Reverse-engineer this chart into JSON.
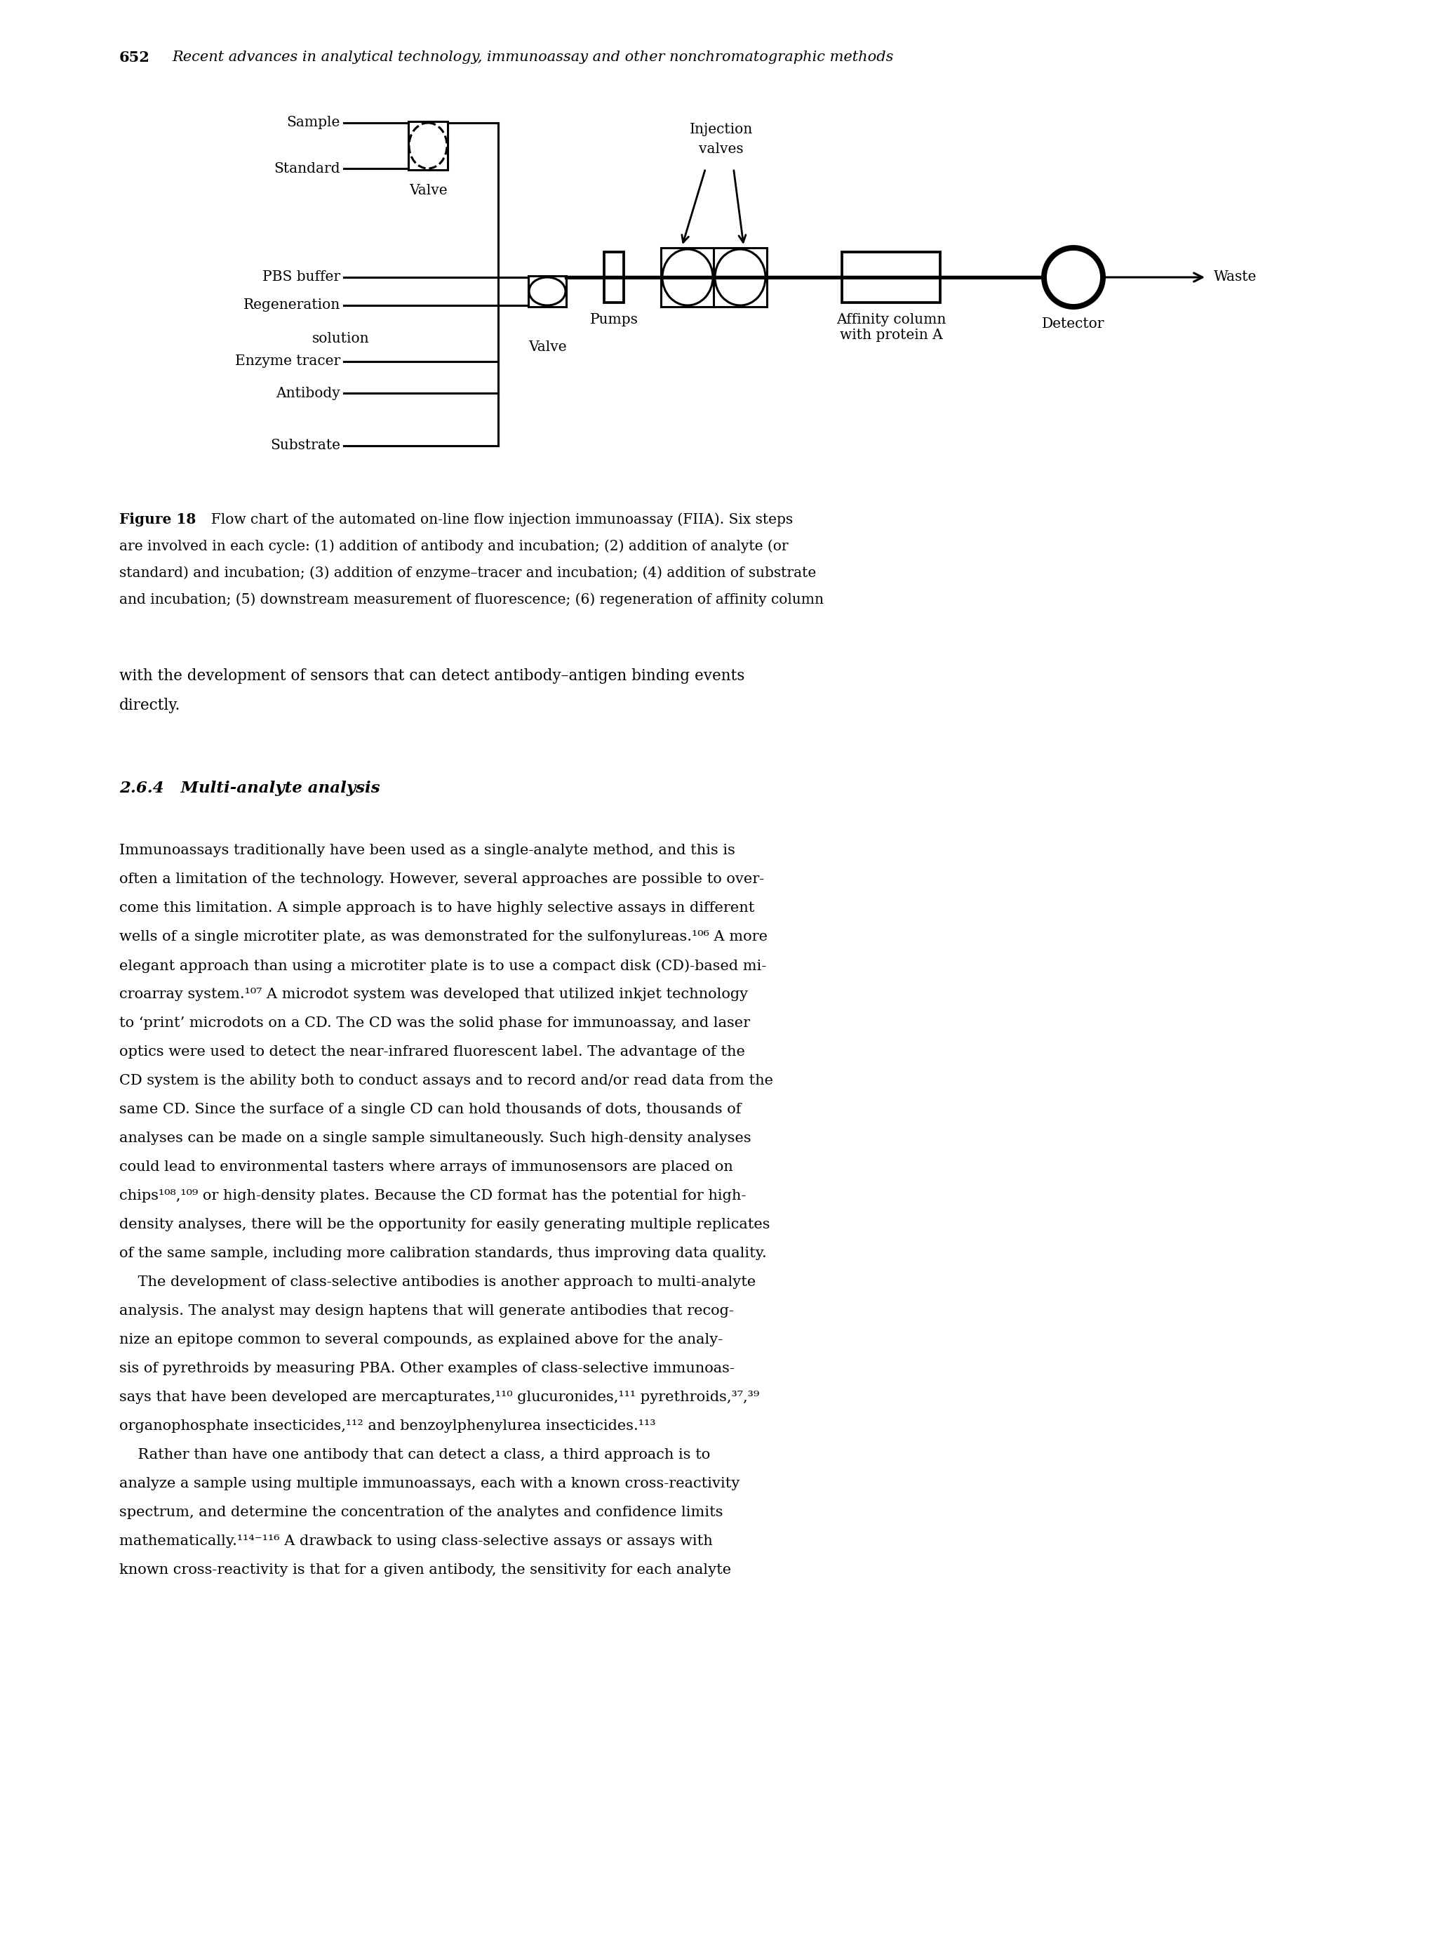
{
  "page_number": "652",
  "header_italic": "Recent advances in analytical technology, immunoassay and other nonchromatographic methods",
  "figure_caption_lines": [
    [
      "bold",
      "Figure 18"
    ],
    [
      "normal",
      "  Flow chart of the automated on-line flow injection immunoassay (FIIA). Six steps"
    ],
    [
      "normal",
      "are involved in each cycle: (1) addition of antibody and incubation; (2) addition of analyte (or"
    ],
    [
      "normal",
      "standard) and incubation; (3) addition of enzyme–tracer and incubation; (4) addition of substrate"
    ],
    [
      "normal",
      "and incubation; (5) downstream measurement of fluorescence; (6) regeneration of affinity column"
    ]
  ],
  "continuation_lines": [
    "with the development of sensors that can detect antibody–antigen binding events",
    "directly."
  ],
  "section_heading": "2.6.4   Multi-analyte analysis",
  "body_paragraphs": [
    [
      "Immunoassays traditionally have been used as a single-analyte method, and this is",
      "often a limitation of the technology. However, several approaches are possible to over-",
      "come this limitation. A simple approach is to have highly selective assays in different",
      "wells of a single microtiter plate, as was demonstrated for the sulfonylureas.¹⁰⁶ A more",
      "elegant approach than using a microtiter plate is to use a compact disk (CD)-based mi-",
      "croarray system.¹⁰⁷ A microdot system was developed that utilized inkjet technology",
      "to ‘print’ microdots on a CD. The CD was the solid phase for immunoassay, and laser",
      "optics were used to detect the near-infrared fluorescent label. The advantage of the",
      "CD system is the ability both to conduct assays and to record and/or read data from the",
      "same CD. Since the surface of a single CD can hold thousands of dots, thousands of",
      "analyses can be made on a single sample simultaneously. Such high-density analyses",
      "could lead to environmental tasters where arrays of immunosensors are placed on",
      "chips¹⁰⁸,¹⁰⁹ or high-density plates. Because the CD format has the potential for high-",
      "density analyses, there will be the opportunity for easily generating multiple replicates",
      "of the same sample, including more calibration standards, thus improving data quality."
    ],
    [
      "    The development of class-selective antibodies is another approach to multi-analyte",
      "analysis. The analyst may design haptens that will generate antibodies that recog-",
      "nize an epitope common to several compounds, as explained above for the analy-",
      "sis of pyrethroids by measuring PBA. Other examples of class-selective immunoas-",
      "says that have been developed are mercapturates,¹¹⁰ glucuronides,¹¹¹ pyrethroids,³⁷,³⁹",
      "organophosphate insecticides,¹¹² and benzoylphenylurea insecticides.¹¹³"
    ],
    [
      "    Rather than have one antibody that can detect a class, a third approach is to",
      "analyze a sample using multiple immunoassays, each with a known cross-reactivity",
      "spectrum, and determine the concentration of the analytes and confidence limits",
      "mathematically.¹¹⁴⁻¹¹⁶ A drawback to using class-selective assays or assays with",
      "known cross-reactivity is that for a given antibody, the sensitivity for each analyte"
    ]
  ],
  "bg": "#ffffff"
}
